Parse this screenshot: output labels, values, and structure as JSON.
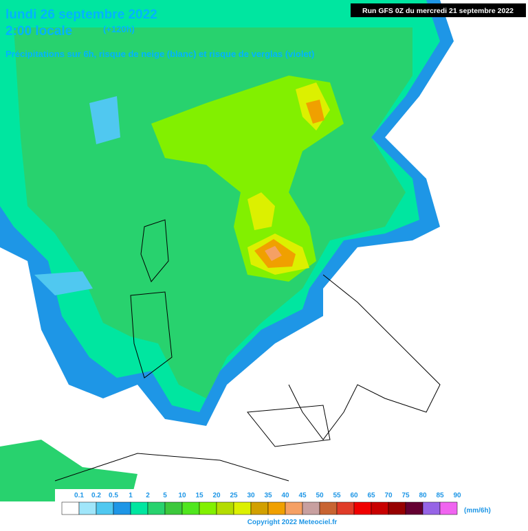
{
  "header": {
    "date": "lundi 26 septembre 2022",
    "time": "2:00 locale",
    "lead": "(+120h)",
    "subtitle": "Précipitations sur 6h, risque de neige (blanc) et risque de verglas (violet)",
    "run": "Run GFS 0Z du mercredi 21 septembre 2022"
  },
  "legend": {
    "labels": [
      "0.1",
      "0.2",
      "0.5",
      "1",
      "2",
      "5",
      "10",
      "15",
      "20",
      "25",
      "30",
      "35",
      "40",
      "45",
      "50",
      "55",
      "60",
      "65",
      "70",
      "75",
      "80",
      "85",
      "90"
    ],
    "colors": [
      "#ffffff",
      "#a0e6fa",
      "#50c8f0",
      "#1e96e6",
      "#00e6a0",
      "#28d26e",
      "#3cc83c",
      "#50e61e",
      "#82f000",
      "#b4dc00",
      "#dcf000",
      "#d2a000",
      "#f0a000",
      "#f5a064",
      "#c8a0a0",
      "#c86432",
      "#e03c28",
      "#f00000",
      "#c80000",
      "#960000",
      "#640032",
      "#9664e6",
      "#f064f0"
    ],
    "unit": "(mm/6h)"
  },
  "footer": {
    "copyright": "Copyright 2022 Meteociel.fr"
  }
}
